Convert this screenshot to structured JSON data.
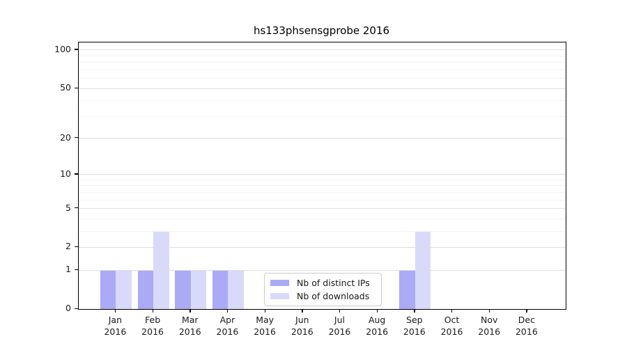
{
  "chart_data": {
    "type": "bar",
    "title": "hs133phsensgprobe 2016",
    "categories": [
      "Jan",
      "Feb",
      "Mar",
      "Apr",
      "May",
      "Jun",
      "Jul",
      "Aug",
      "Sep",
      "Oct",
      "Nov",
      "Dec"
    ],
    "xtick_year": "2016",
    "series": [
      {
        "name": "Nb of distinct IPs",
        "color": "#aaaaf7",
        "values": [
          1,
          1,
          1,
          1,
          0,
          0,
          0,
          0,
          1,
          0,
          0,
          0
        ]
      },
      {
        "name": "Nb of downloads",
        "color": "#d9d9fa",
        "values": [
          1,
          3,
          1,
          1,
          0,
          0,
          0,
          0,
          3,
          0,
          0,
          0
        ]
      }
    ],
    "yticks": [
      0,
      1,
      2,
      5,
      10,
      20,
      50,
      100
    ],
    "yticks_minor": [
      3,
      4,
      6,
      7,
      8,
      9,
      30,
      40,
      60,
      70,
      80,
      90
    ],
    "scale": "log1p",
    "ylim": [
      0,
      115
    ],
    "xlabel": "",
    "ylabel": "",
    "grid": "on",
    "legend_position": "lower-center-inside"
  }
}
